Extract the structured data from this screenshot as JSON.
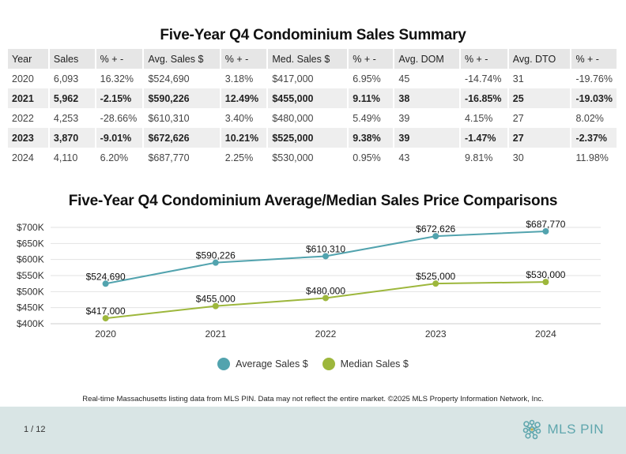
{
  "table": {
    "title": "Five-Year Q4 Condominium Sales Summary",
    "headers": [
      "Year",
      "Sales",
      "% + -",
      "Avg. Sales $",
      "% + -",
      "Med. Sales $",
      "% + -",
      "Avg. DOM",
      "% + -",
      "Avg. DTO",
      "% + -"
    ],
    "rows": [
      [
        "2020",
        "6,093",
        "16.32%",
        "$524,690",
        "3.18%",
        "$417,000",
        "6.95%",
        "45",
        "-14.74%",
        "31",
        "-19.76%"
      ],
      [
        "2021",
        "5,962",
        "-2.15%",
        "$590,226",
        "12.49%",
        "$455,000",
        "9.11%",
        "38",
        "-16.85%",
        "25",
        "-19.03%"
      ],
      [
        "2022",
        "4,253",
        "-28.66%",
        "$610,310",
        "3.40%",
        "$480,000",
        "5.49%",
        "39",
        "4.15%",
        "27",
        "8.02%"
      ],
      [
        "2023",
        "3,870",
        "-9.01%",
        "$672,626",
        "10.21%",
        "$525,000",
        "9.38%",
        "39",
        "-1.47%",
        "27",
        "-2.37%"
      ],
      [
        "2024",
        "4,110",
        "6.20%",
        "$687,770",
        "2.25%",
        "$530,000",
        "0.95%",
        "43",
        "9.81%",
        "30",
        "11.98%"
      ]
    ]
  },
  "chart_data": {
    "type": "line",
    "title": "Five-Year Q4 Condominium Average/Median Sales Price Comparisons",
    "x": [
      "2020",
      "2021",
      "2022",
      "2023",
      "2024"
    ],
    "ylim": [
      400000,
      700000
    ],
    "yticks": [
      700000,
      650000,
      600000,
      550000,
      500000,
      450000,
      400000
    ],
    "ytick_labels": [
      "$700K",
      "$650K",
      "$600K",
      "$550K",
      "$500K",
      "$450K",
      "$400K"
    ],
    "grid": true,
    "legend_position": "bottom",
    "series": [
      {
        "name": "Average Sales $",
        "color": "#52a3ae",
        "values": [
          524690,
          590226,
          610310,
          672626,
          687770
        ],
        "labels": [
          "$524,690",
          "$590,226",
          "$610,310",
          "$672,626",
          "$687,770"
        ]
      },
      {
        "name": "Median Sales $",
        "color": "#9db73c",
        "values": [
          417000,
          455000,
          480000,
          525000,
          530000
        ],
        "labels": [
          "$417,000",
          "$455,000",
          "$480,000",
          "$525,000",
          "$530,000"
        ]
      }
    ]
  },
  "footer": {
    "disclaimer": "Real-time Massachusetts listing data from MLS PIN. Data may not reflect the entire market. ©2025 MLS Property Information Network, Inc.",
    "page": "1 / 12",
    "logo_text": "MLS PIN"
  }
}
